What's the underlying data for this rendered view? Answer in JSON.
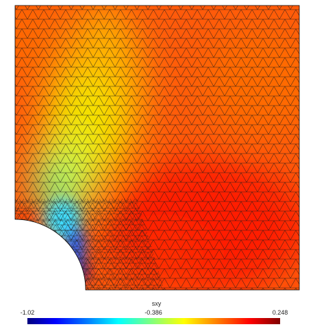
{
  "field": {
    "variable": "sxy"
  },
  "colorbar": {
    "title": "sxy",
    "min_label": "-1.02",
    "mid_label": "-0.386",
    "max_label": "0.248",
    "min_value": -1.02,
    "max_value": 0.248
  },
  "colors": {
    "background": "#ffffff",
    "mesh_edges": "#000000",
    "colormap": [
      "#00007f",
      "#0000ff",
      "#007fff",
      "#00ffff",
      "#7fff7f",
      "#ffff00",
      "#ff7f00",
      "#ff0000",
      "#7f0000"
    ]
  }
}
